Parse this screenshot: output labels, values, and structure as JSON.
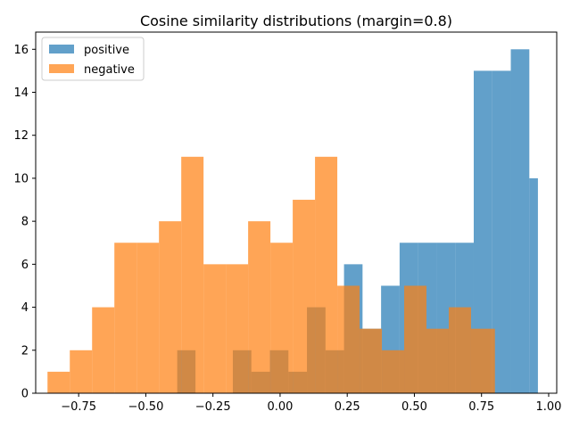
{
  "chart_data": {
    "type": "bar",
    "subtype": "overlapping-histogram",
    "title": "Cosine similarity distributions (margin=0.8)",
    "xlabel": "",
    "ylabel": "",
    "xlim": [
      -0.91,
      1.03
    ],
    "ylim": [
      0,
      16.8
    ],
    "grid": false,
    "legend_placement": "top-left",
    "x_ticks": [
      -0.75,
      -0.5,
      -0.25,
      0.0,
      0.25,
      0.5,
      0.75,
      1.0
    ],
    "x_tick_labels": [
      "−0.75",
      "−0.50",
      "−0.25",
      "0.00",
      "0.25",
      "0.50",
      "0.75",
      "1.00"
    ],
    "y_ticks": [
      0,
      2,
      4,
      6,
      8,
      10,
      12,
      14,
      16
    ],
    "y_tick_labels": [
      "0",
      "2",
      "4",
      "6",
      "8",
      "10",
      "12",
      "14",
      "16"
    ],
    "series": [
      {
        "name": "positive",
        "color": "#1f77b4",
        "alpha": 0.7,
        "bins": [
          {
            "x0": -0.383,
            "x1": -0.315,
            "count": 2
          },
          {
            "x0": -0.315,
            "x1": -0.176,
            "count": 0
          },
          {
            "x0": -0.176,
            "x1": -0.107,
            "count": 2
          },
          {
            "x0": -0.107,
            "x1": -0.038,
            "count": 1
          },
          {
            "x0": -0.038,
            "x1": 0.031,
            "count": 2
          },
          {
            "x0": 0.031,
            "x1": 0.1,
            "count": 1
          },
          {
            "x0": 0.1,
            "x1": 0.169,
            "count": 4
          },
          {
            "x0": 0.169,
            "x1": 0.238,
            "count": 2
          },
          {
            "x0": 0.238,
            "x1": 0.307,
            "count": 6
          },
          {
            "x0": 0.307,
            "x1": 0.376,
            "count": 3
          },
          {
            "x0": 0.376,
            "x1": 0.445,
            "count": 5
          },
          {
            "x0": 0.445,
            "x1": 0.514,
            "count": 7
          },
          {
            "x0": 0.514,
            "x1": 0.583,
            "count": 7
          },
          {
            "x0": 0.583,
            "x1": 0.652,
            "count": 7
          },
          {
            "x0": 0.652,
            "x1": 0.721,
            "count": 7
          },
          {
            "x0": 0.721,
            "x1": 0.79,
            "count": 15
          },
          {
            "x0": 0.79,
            "x1": 0.859,
            "count": 15
          },
          {
            "x0": 0.859,
            "x1": 0.928,
            "count": 16
          },
          {
            "x0": 0.928,
            "x1": 0.96,
            "count": 10
          }
        ]
      },
      {
        "name": "negative",
        "color": "#ff7f0e",
        "alpha": 0.7,
        "bins": [
          {
            "x0": -0.866,
            "x1": -0.783,
            "count": 1
          },
          {
            "x0": -0.783,
            "x1": -0.7,
            "count": 2
          },
          {
            "x0": -0.7,
            "x1": -0.617,
            "count": 4
          },
          {
            "x0": -0.617,
            "x1": -0.534,
            "count": 7
          },
          {
            "x0": -0.534,
            "x1": -0.451,
            "count": 7
          },
          {
            "x0": -0.451,
            "x1": -0.368,
            "count": 8
          },
          {
            "x0": -0.368,
            "x1": -0.285,
            "count": 11
          },
          {
            "x0": -0.285,
            "x1": -0.202,
            "count": 6
          },
          {
            "x0": -0.202,
            "x1": -0.119,
            "count": 6
          },
          {
            "x0": -0.119,
            "x1": -0.036,
            "count": 8
          },
          {
            "x0": -0.036,
            "x1": 0.047,
            "count": 7
          },
          {
            "x0": 0.047,
            "x1": 0.13,
            "count": 9
          },
          {
            "x0": 0.13,
            "x1": 0.213,
            "count": 11
          },
          {
            "x0": 0.213,
            "x1": 0.296,
            "count": 5
          },
          {
            "x0": 0.296,
            "x1": 0.379,
            "count": 3
          },
          {
            "x0": 0.379,
            "x1": 0.462,
            "count": 2
          },
          {
            "x0": 0.462,
            "x1": 0.545,
            "count": 5
          },
          {
            "x0": 0.545,
            "x1": 0.628,
            "count": 3
          },
          {
            "x0": 0.628,
            "x1": 0.711,
            "count": 4
          },
          {
            "x0": 0.711,
            "x1": 0.8,
            "count": 3
          }
        ]
      }
    ]
  }
}
